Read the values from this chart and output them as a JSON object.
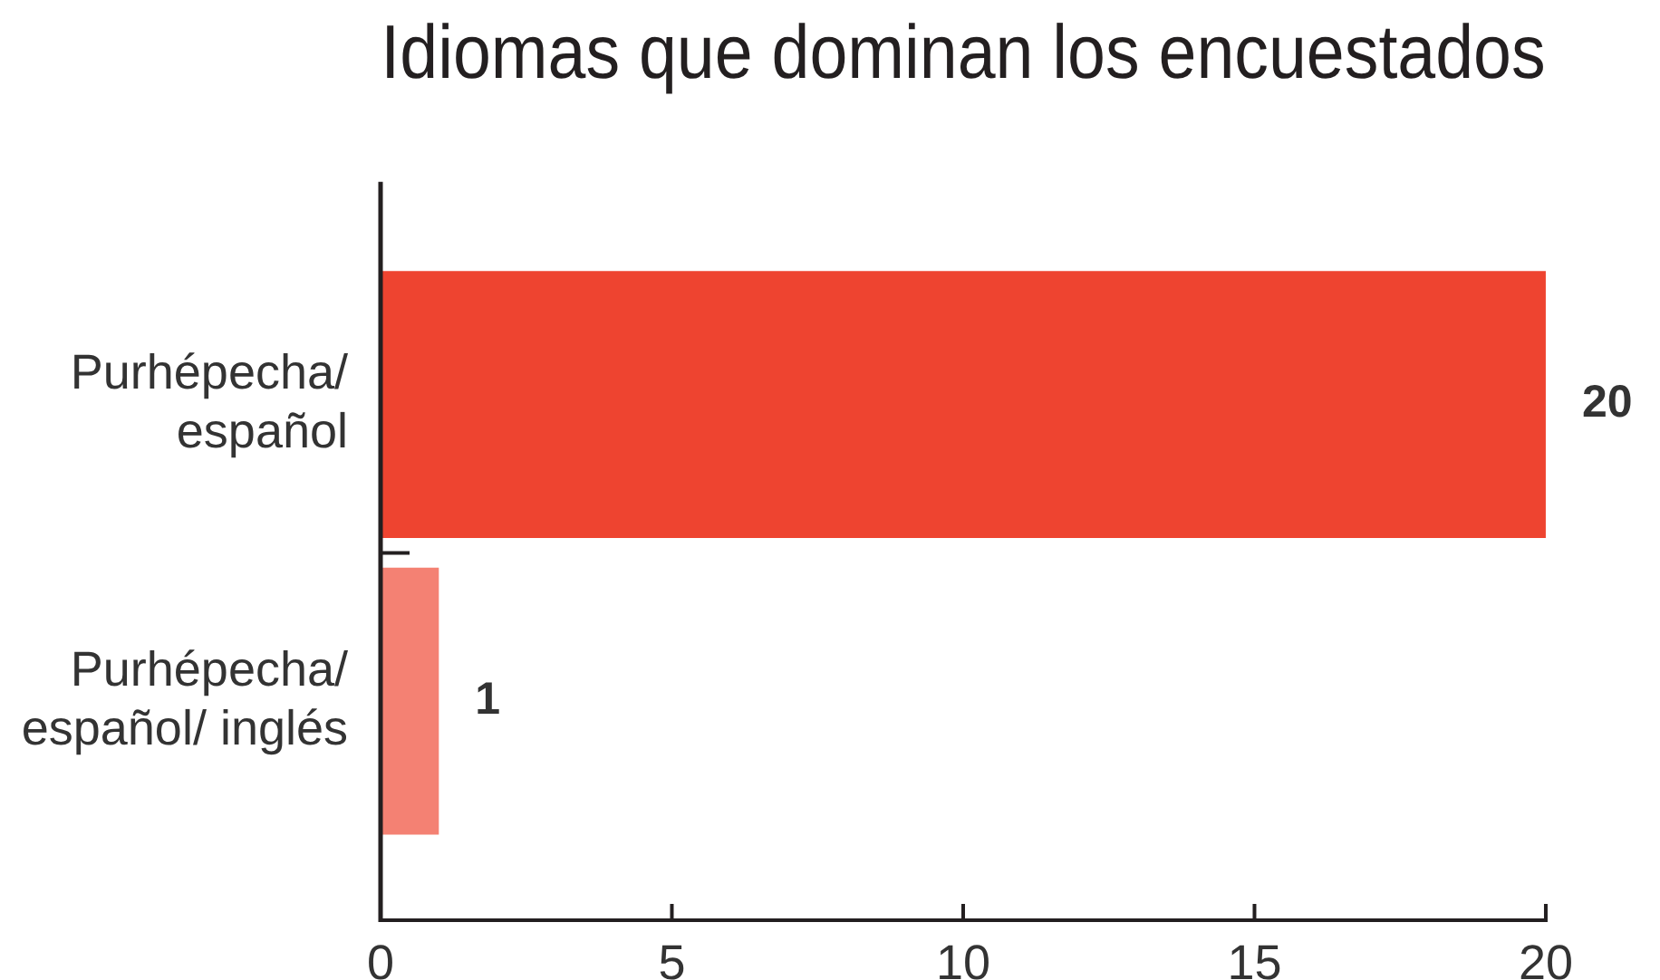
{
  "chart_data": {
    "type": "bar",
    "orientation": "horizontal",
    "title": "Idiomas que dominan los encuestados",
    "categories": [
      "Purhépecha/ español",
      "Purhépecha/ español/ inglés"
    ],
    "values": [
      20,
      1
    ],
    "colors": [
      "#ee4430",
      "#f48173"
    ],
    "xlim": [
      0,
      20
    ],
    "xticks": [
      0,
      5,
      10,
      15,
      20
    ],
    "grid": false,
    "legend": false,
    "data_labels": true
  }
}
